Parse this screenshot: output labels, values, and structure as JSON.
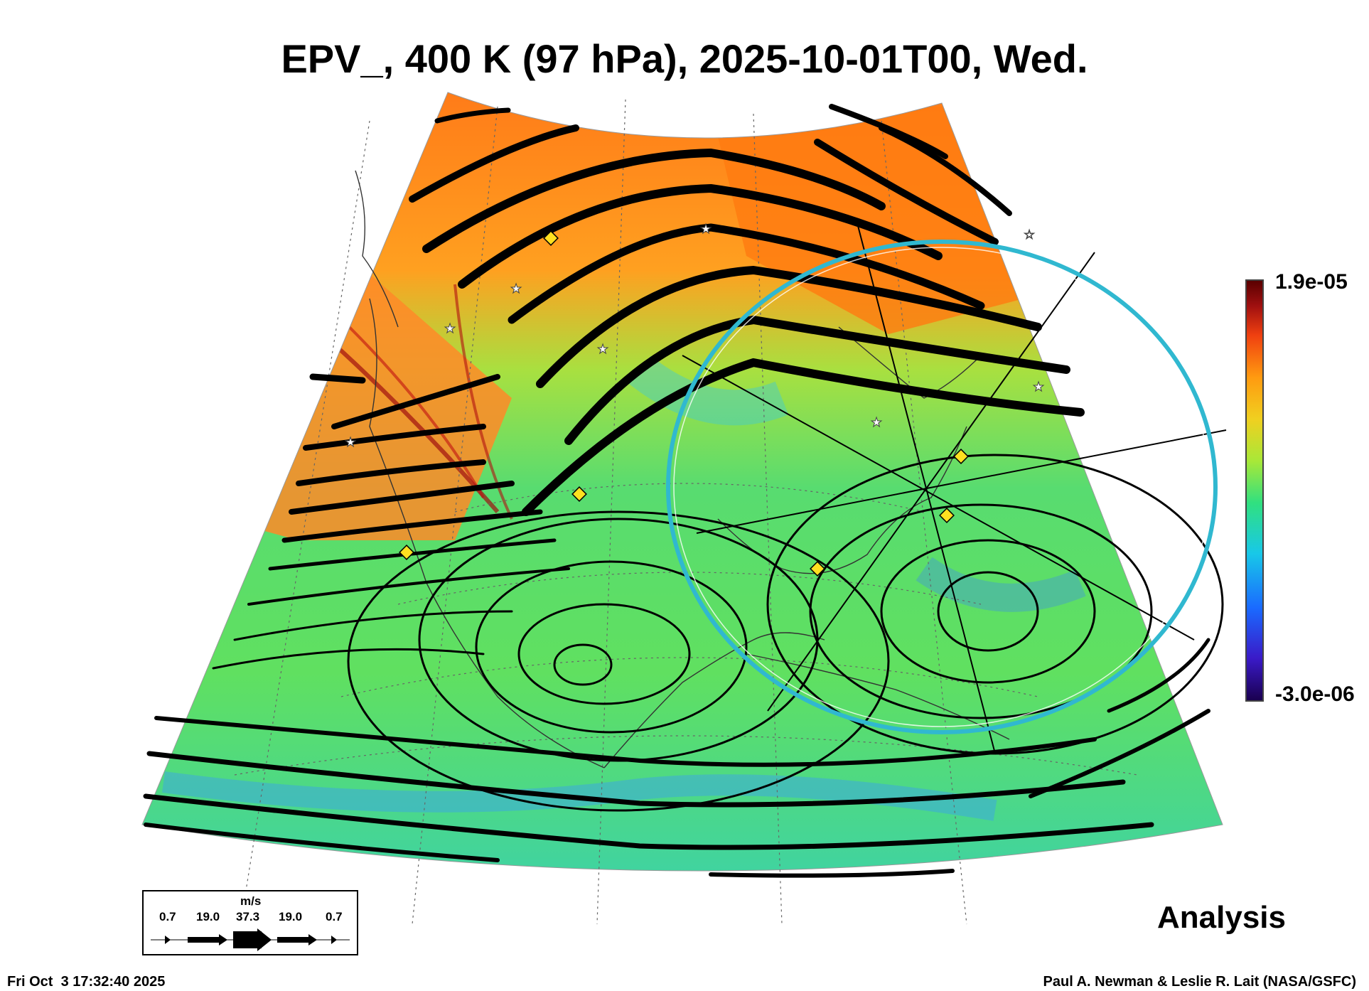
{
  "title": "EPV_, 400 K (97 hPa), 2025-10-01T00, Wed.",
  "colorbar": {
    "max_label": "1.9e-05",
    "min_label": "-3.0e-06",
    "colors": [
      "#1a0050",
      "#3a1ac8",
      "#1a6aff",
      "#18c8e8",
      "#30e080",
      "#a8e838",
      "#f0d020",
      "#ff9a10",
      "#f04010",
      "#a01010",
      "#5a0000"
    ]
  },
  "legend": {
    "units": "m/s",
    "values": [
      "0.7",
      "19.0",
      "37.3",
      "19.0",
      "0.7"
    ]
  },
  "product_label": "Analysis",
  "timestamp": "Fri Oct  3 17:32:40 2025",
  "credit": "Paul A. Newman & Leslie R. Lait (NASA/GSFC)",
  "map_colors": {
    "north_band": "#ff8a20",
    "mid_band": "#60e060",
    "south_band": "#40d8a0",
    "streamline": "#000000",
    "ring": "#30b8d0",
    "marker": "#ffe020"
  }
}
